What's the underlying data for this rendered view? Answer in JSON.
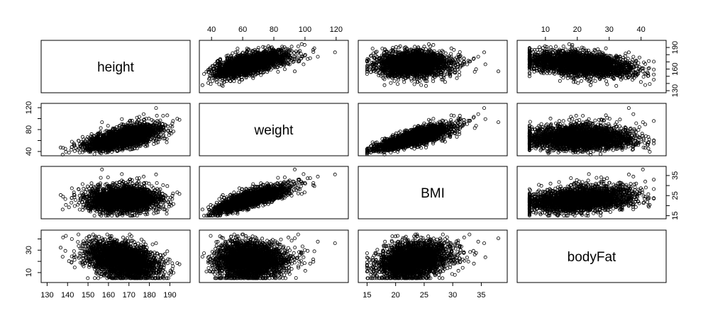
{
  "chart_data": {
    "type": "scatter",
    "variables": [
      "height",
      "weight",
      "BMI",
      "bodyFat"
    ],
    "axes": {
      "height": {
        "range": [
          130,
          197
        ],
        "ticks": [
          130,
          140,
          150,
          160,
          170,
          180,
          190
        ]
      },
      "weight": {
        "range": [
          36,
          124
        ],
        "ticks": [
          40,
          60,
          80,
          100,
          120
        ]
      },
      "BMI": {
        "range": [
          14.5,
          38.5
        ],
        "ticks": [
          15,
          20,
          25,
          30,
          35
        ]
      },
      "bodyFat": {
        "range": [
          3,
          46
        ],
        "ticks": [
          10,
          20,
          30,
          40
        ]
      }
    },
    "tick_sides": {
      "height": "bottom",
      "weight": "top",
      "BMI": "bottom",
      "bodyFat": "top",
      "rows": {
        "height": "right",
        "weight": "left",
        "BMI": "right",
        "bodyFat": "left"
      }
    },
    "y_tick_subsets": {
      "height": [
        130,
        160,
        190
      ],
      "weight": [
        40,
        80,
        120
      ],
      "BMI": [
        15,
        25,
        35
      ],
      "bodyFat": [
        10,
        30
      ]
    },
    "n_points": 3000,
    "grid": false,
    "legend": "none"
  }
}
